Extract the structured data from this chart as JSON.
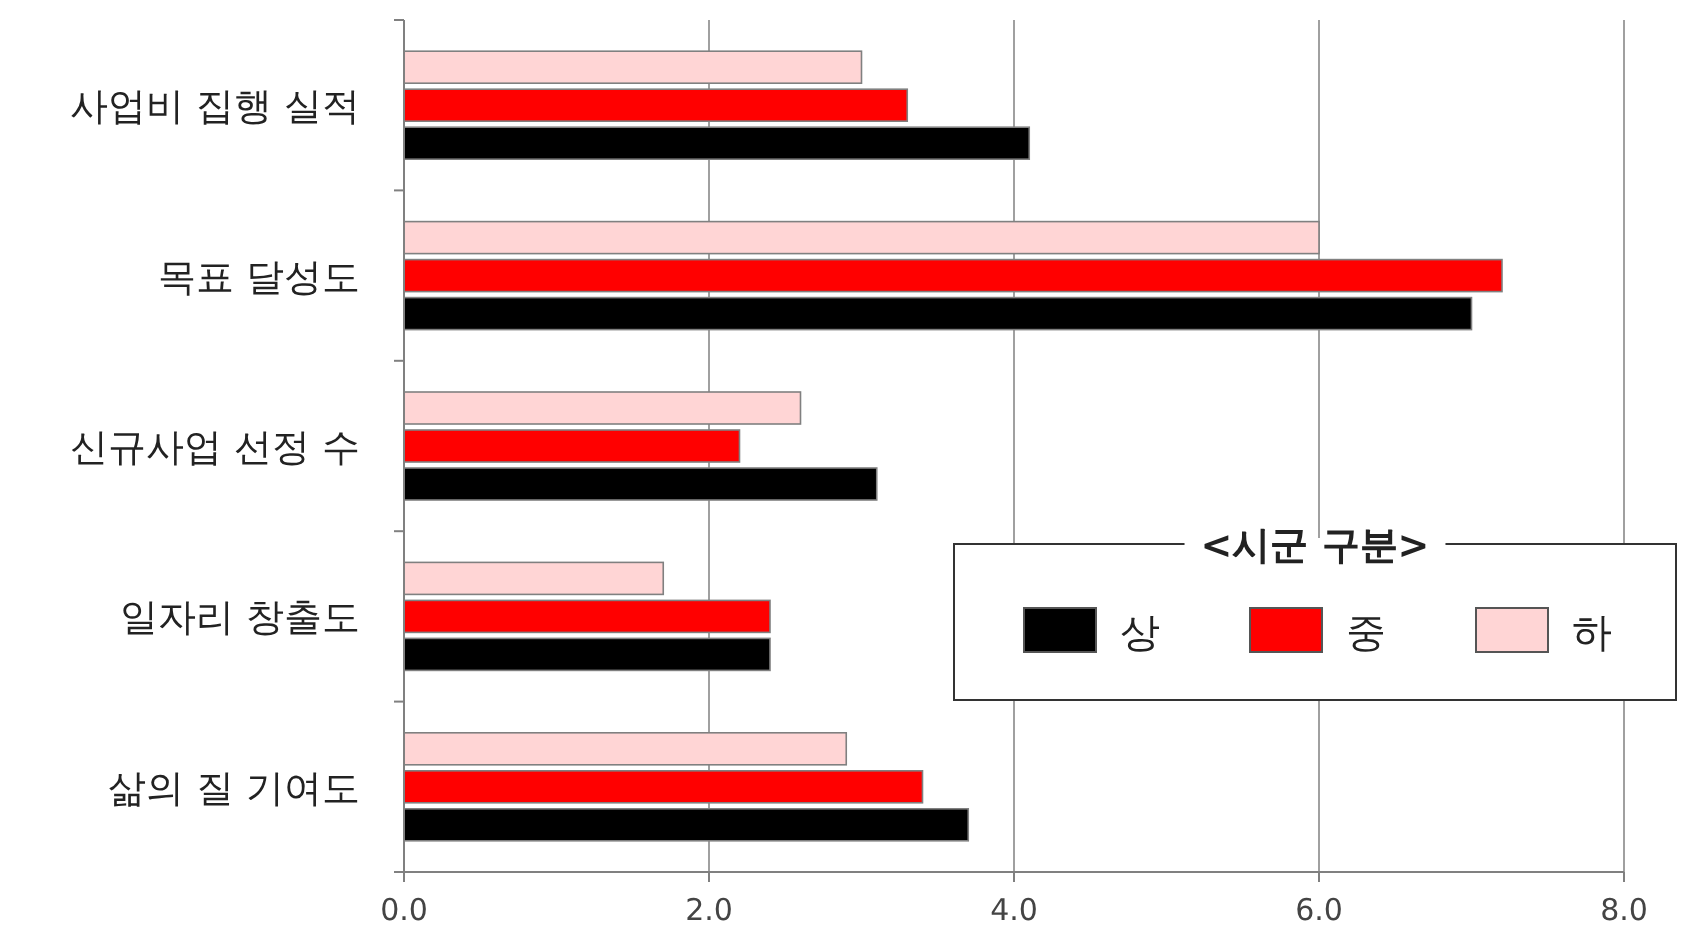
{
  "chart_data": {
    "type": "bar",
    "orientation": "horizontal",
    "categories": [
      "사업비 집행 실적",
      "목표 달성도",
      "신규사업 선정 수",
      "일자리 창출도",
      "삶의 질 기여도"
    ],
    "series": [
      {
        "name": "상",
        "color": "#000000",
        "values": [
          4.1,
          7.0,
          3.1,
          2.4,
          3.7
        ]
      },
      {
        "name": "중",
        "color": "#ff0000",
        "values": [
          3.3,
          7.2,
          2.2,
          2.4,
          3.4
        ]
      },
      {
        "name": "하",
        "color": "#ffd5d5",
        "values": [
          3.0,
          6.0,
          2.6,
          1.7,
          2.9
        ]
      }
    ],
    "xlim": [
      0,
      8
    ],
    "xticks": [
      {
        "value": 0,
        "label": "0.0"
      },
      {
        "value": 2,
        "label": "2.0"
      },
      {
        "value": 4,
        "label": "4.0"
      },
      {
        "value": 6,
        "label": "6.0"
      },
      {
        "value": 8,
        "label": "8.0"
      }
    ],
    "grid": "x",
    "legend": "bottom right",
    "legend_title": "<시군 구분>"
  }
}
